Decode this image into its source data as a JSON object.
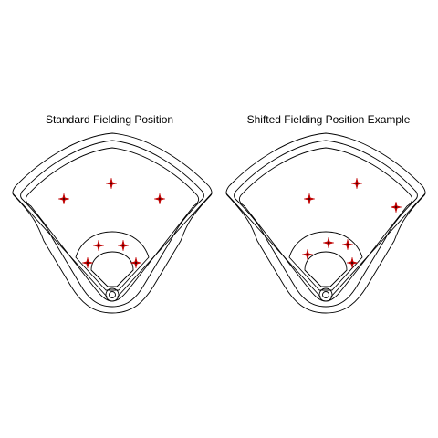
{
  "panels": [
    {
      "title": "Standard Fielding Position",
      "fielders": [
        {
          "role": "left-fielder",
          "pos": [
            70,
            218
          ]
        },
        {
          "role": "center-fielder",
          "pos": [
            122,
            201
          ]
        },
        {
          "role": "right-fielder",
          "pos": [
            175,
            218
          ]
        },
        {
          "role": "third-baseman",
          "pos": [
            96,
            288
          ]
        },
        {
          "role": "shortstop",
          "pos": [
            108,
            269
          ]
        },
        {
          "role": "second-baseman",
          "pos": [
            135,
            269
          ]
        },
        {
          "role": "first-baseman",
          "pos": [
            149,
            288
          ]
        }
      ]
    },
    {
      "title": "Shifted Fielding Position Example",
      "fielders": [
        {
          "role": "left-fielder",
          "pos": [
            339,
            218
          ]
        },
        {
          "role": "center-fielder",
          "pos": [
            391,
            201
          ]
        },
        {
          "role": "right-fielder",
          "pos": [
            434,
            227
          ]
        },
        {
          "role": "third-baseman",
          "pos": [
            337,
            279
          ]
        },
        {
          "role": "shortstop",
          "pos": [
            360,
            266
          ]
        },
        {
          "role": "second-baseman",
          "pos": [
            381,
            268
          ]
        },
        {
          "role": "first-baseman",
          "pos": [
            386,
            288
          ]
        }
      ]
    }
  ],
  "colors": {
    "line": "#000000",
    "fielder_marker": "#c00000"
  }
}
